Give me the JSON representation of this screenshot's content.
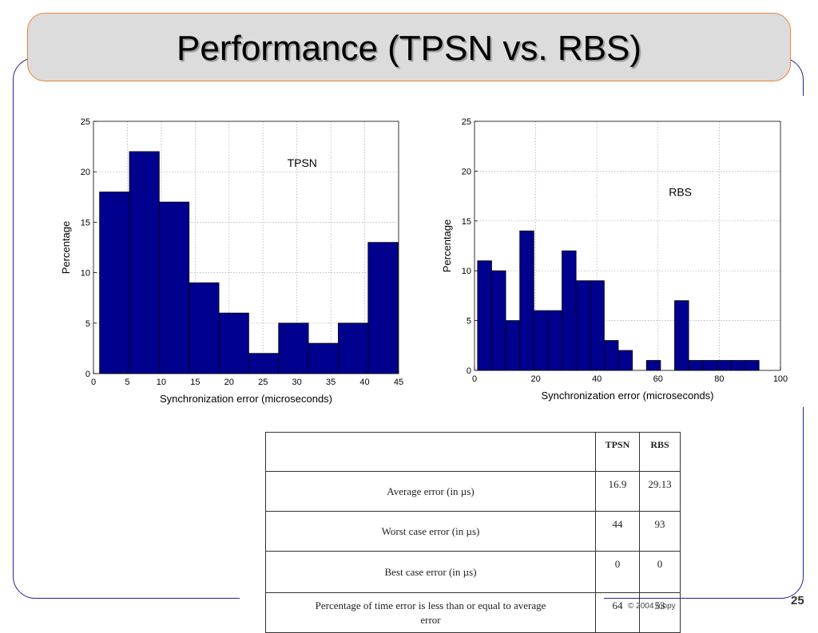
{
  "slide": {
    "title": "Performance (TPSN vs. RBS)",
    "footer": "© 2004  mopy",
    "page_number": "25"
  },
  "chart_data": [
    {
      "type": "bar",
      "annotation": "TPSN",
      "xlabel": "Synchronization error (microseconds)",
      "ylabel": "Percentage",
      "xlim": [
        0,
        45
      ],
      "ylim": [
        0,
        25
      ],
      "xticks": [
        0,
        5,
        10,
        15,
        20,
        25,
        30,
        35,
        40,
        45
      ],
      "yticks": [
        0,
        5,
        10,
        15,
        20,
        25
      ],
      "grid": true,
      "bin_edges": [
        0.9,
        5.3,
        9.7,
        14.1,
        18.5,
        22.9,
        27.3,
        31.7,
        36.1,
        40.5,
        44.9
      ],
      "values": [
        18,
        22,
        17,
        9,
        6,
        2,
        5,
        3,
        5,
        13
      ],
      "color": "#00008f"
    },
    {
      "type": "bar",
      "annotation": "RBS",
      "xlabel": "Synchronization error (microseconds)",
      "ylabel": "Percentage",
      "xlim": [
        0,
        100
      ],
      "ylim": [
        0,
        25
      ],
      "xticks": [
        0,
        20,
        40,
        60,
        80,
        100
      ],
      "yticks": [
        0,
        5,
        10,
        15,
        20,
        25
      ],
      "grid": true,
      "bin_edges": [
        1,
        5.6,
        10.2,
        14.8,
        19.4,
        24,
        28.6,
        33.2,
        37.8,
        42.4,
        47,
        51.6,
        56.2,
        60.8,
        65.4,
        70,
        74.6,
        79.2,
        83.8,
        88.4,
        93
      ],
      "values": [
        11,
        10,
        5,
        14,
        6,
        6,
        12,
        9,
        9,
        3,
        2,
        0,
        1,
        0,
        7,
        1,
        1,
        1,
        1,
        1
      ],
      "color": "#00008f"
    }
  ],
  "table": {
    "headers": [
      "",
      "TPSN",
      "RBS"
    ],
    "rows": [
      {
        "label": "Average error (in µs)",
        "tpsn": "16.9",
        "rbs": "29.13"
      },
      {
        "label": "Worst case error (in µs)",
        "tpsn": "44",
        "rbs": "93"
      },
      {
        "label": "Best case error (in µs)",
        "tpsn": "0",
        "rbs": "0"
      },
      {
        "label": "Percentage of time error is less than or equal to average error",
        "tpsn": "64",
        "rbs": "53"
      }
    ]
  }
}
